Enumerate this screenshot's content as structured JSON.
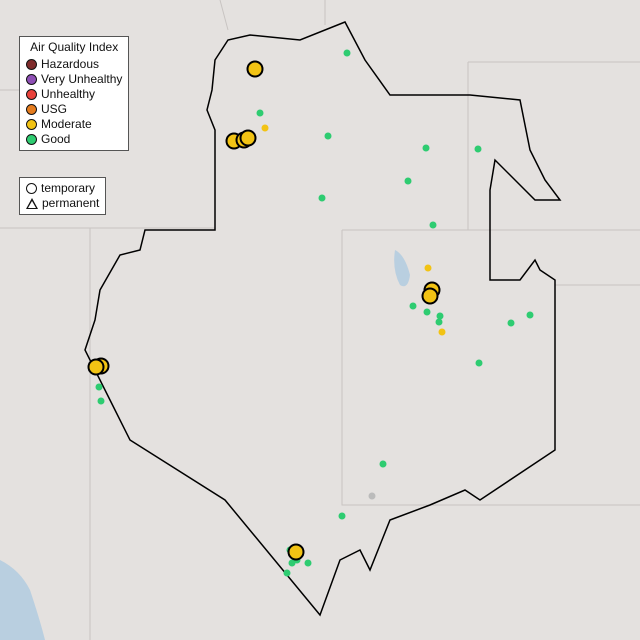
{
  "legend_aqi": {
    "title": "Air Quality Index",
    "items": [
      {
        "label": "Hazardous",
        "color": "#7e2b2b"
      },
      {
        "label": "Very Unhealthy",
        "color": "#8e4fb5"
      },
      {
        "label": "Unhealthy",
        "color": "#e8413a"
      },
      {
        "label": "USG",
        "color": "#e57c1e"
      },
      {
        "label": "Moderate",
        "color": "#f2c314"
      },
      {
        "label": "Good",
        "color": "#2ecc71"
      }
    ]
  },
  "legend_type": {
    "items": [
      {
        "label": "temporary",
        "shape": "circle"
      },
      {
        "label": "permanent",
        "shape": "triangle"
      }
    ]
  },
  "colors": {
    "unknown": "#bbbbbb",
    "boundary": "#000000",
    "water": "#b9cfe0"
  },
  "markers": {
    "moderate_temporary": 9,
    "moderate_permanent": 3,
    "good_permanent": 24,
    "unknown_permanent": 1
  }
}
